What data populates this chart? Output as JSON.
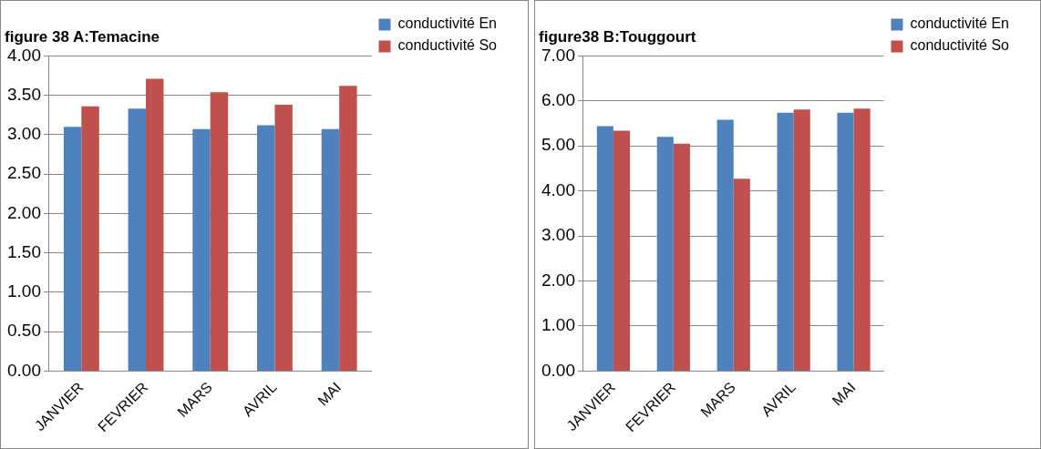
{
  "chart_data": [
    {
      "type": "bar",
      "title": "figure 38 A:Temacine",
      "categories": [
        "JANVIER",
        "FEVRIER",
        "MARS",
        "AVRIL",
        "MAI"
      ],
      "series": [
        {
          "name": "conductivité En",
          "color": "#4f81bd",
          "values": [
            3.1,
            3.33,
            3.07,
            3.12,
            3.07
          ]
        },
        {
          "name": "conductivité So",
          "color": "#c0504d",
          "values": [
            3.36,
            3.71,
            3.54,
            3.38,
            3.62
          ]
        }
      ],
      "ylim": [
        0,
        4
      ],
      "yticks": [
        {
          "value": 0,
          "label": "0.00"
        },
        {
          "value": 0.5,
          "label": "0.50"
        },
        {
          "value": 1,
          "label": "1.00"
        },
        {
          "value": 1.5,
          "label": "1.50"
        },
        {
          "value": 2,
          "label": "2.00"
        },
        {
          "value": 2.5,
          "label": "2.50"
        },
        {
          "value": 3,
          "label": "3.00"
        },
        {
          "value": 3.5,
          "label": "3.50"
        },
        {
          "value": 4,
          "label": "4.00"
        }
      ],
      "grid": "y",
      "legend": "top right"
    },
    {
      "type": "bar",
      "title": "figure38 B:Touggourt",
      "categories": [
        "JANVIER",
        "FEVRIER",
        "MARS",
        "AVRIL",
        "MAI"
      ],
      "series": [
        {
          "name": "conductivité En",
          "color": "#4f81bd",
          "values": [
            5.44,
            5.2,
            5.58,
            5.74,
            5.74
          ]
        },
        {
          "name": "conductivité So",
          "color": "#c0504d",
          "values": [
            5.34,
            5.05,
            4.27,
            5.81,
            5.83
          ]
        }
      ],
      "ylim": [
        0,
        7
      ],
      "yticks": [
        {
          "value": 0,
          "label": "0.00"
        },
        {
          "value": 1,
          "label": "1.00"
        },
        {
          "value": 2,
          "label": "2.00"
        },
        {
          "value": 3,
          "label": "3.00"
        },
        {
          "value": 4,
          "label": "4.00"
        },
        {
          "value": 5,
          "label": "5.00"
        },
        {
          "value": 6,
          "label": "6.00"
        },
        {
          "value": 7,
          "label": "7.00"
        }
      ],
      "grid": "y",
      "legend": "top right"
    }
  ]
}
